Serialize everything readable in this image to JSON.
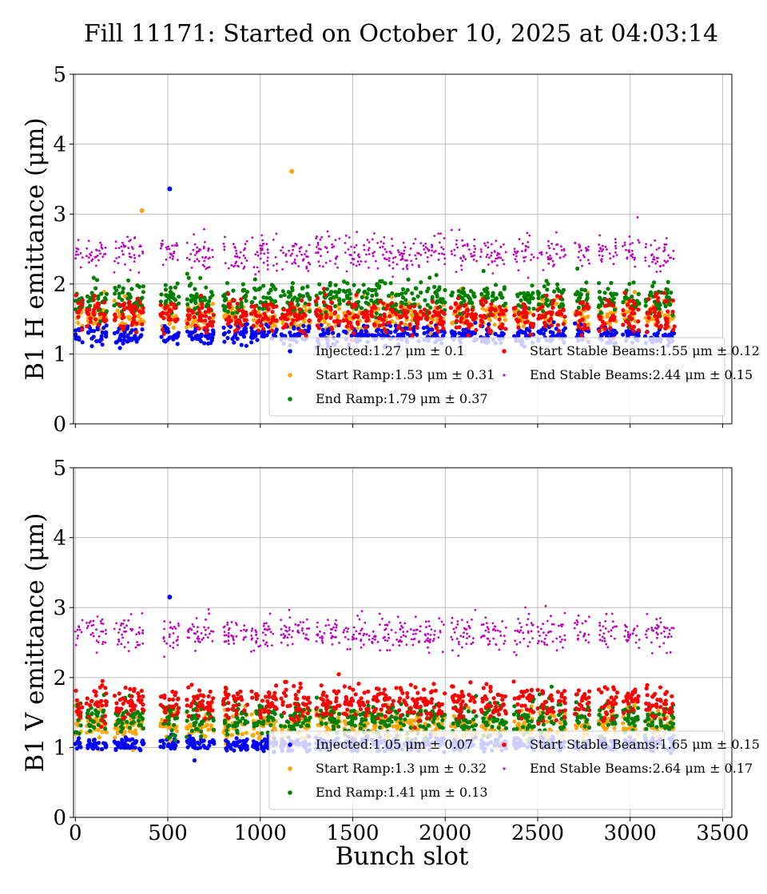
{
  "chart_data": {
    "type": "scatter",
    "title": "Fill 11171: Started on October 10, 2025 at 04:03:14",
    "xlabel": "Bunch slot",
    "xlim": [
      -10,
      3550
    ],
    "xticks": [
      0,
      500,
      1000,
      1500,
      2000,
      2500,
      3000,
      3500
    ],
    "xtick_labels": [
      "0",
      "500",
      "1000",
      "1500",
      "2000",
      "2500",
      "3000",
      "3500"
    ],
    "grid": true,
    "legend_placement": "lower-right",
    "panels": [
      {
        "name": "horizontal",
        "ylabel": "B1 H emittance (μm)",
        "ylim": [
          0,
          5
        ],
        "yticks": [
          0,
          1,
          2,
          3,
          4,
          5
        ],
        "ytick_labels": [
          "0",
          "1",
          "2",
          "3",
          "4",
          "5"
        ],
        "series": [
          {
            "name": "Injected",
            "label": "Injected:1.27 μm ± 0.1",
            "color": "#0000ff",
            "mean": 1.27,
            "std": 0.1
          },
          {
            "name": "Start Ramp",
            "label": "Start Ramp:1.53 μm ± 0.31",
            "color": "#ffa500",
            "mean": 1.53,
            "std": 0.31
          },
          {
            "name": "End Ramp",
            "label": "End Ramp:1.79 μm ± 0.37",
            "color": "#008000",
            "mean": 1.79,
            "std": 0.37
          },
          {
            "name": "Start Stable Beams",
            "label": "Start Stable Beams:1.55 μm ± 0.12",
            "color": "#ff0000",
            "mean": 1.55,
            "std": 0.12
          },
          {
            "name": "End Stable Beams",
            "label": "End Stable Beams:2.44 μm ± 0.15",
            "color": "#bf00bf",
            "mean": 2.44,
            "std": 0.15
          }
        ],
        "outliers": [
          {
            "series": "Injected",
            "x": 510,
            "y": 3.36
          },
          {
            "series": "Start Ramp",
            "x": 1170,
            "y": 3.61
          },
          {
            "series": "Start Ramp",
            "x": 360,
            "y": 3.05
          }
        ]
      },
      {
        "name": "vertical",
        "ylabel": "B1 V emittance (μm)",
        "ylim": [
          0,
          5
        ],
        "yticks": [
          0,
          1,
          2,
          3,
          4,
          5
        ],
        "ytick_labels": [
          "0",
          "1",
          "2",
          "3",
          "4",
          "5"
        ],
        "series": [
          {
            "name": "Injected",
            "label": "Injected:1.05 μm ± 0.07",
            "color": "#0000ff",
            "mean": 1.05,
            "std": 0.07
          },
          {
            "name": "Start Ramp",
            "label": "Start Ramp:1.3 μm ± 0.32",
            "color": "#ffa500",
            "mean": 1.3,
            "std": 0.32
          },
          {
            "name": "End Ramp",
            "label": "End Ramp:1.41 μm ± 0.13",
            "color": "#008000",
            "mean": 1.41,
            "std": 0.13
          },
          {
            "name": "Start Stable Beams",
            "label": "Start Stable Beams:1.65 μm ± 0.15",
            "color": "#ff0000",
            "mean": 1.65,
            "std": 0.15
          },
          {
            "name": "End Stable Beams",
            "label": "End Stable Beams:2.64 μm ± 0.17",
            "color": "#bf00bf",
            "mean": 2.64,
            "std": 0.17
          }
        ],
        "outliers": [
          {
            "series": "Injected",
            "x": 510,
            "y": 3.15
          }
        ]
      }
    ],
    "bunch_trains": [
      [
        0,
        40
      ],
      [
        60,
        170
      ],
      [
        210,
        370
      ],
      [
        460,
        560
      ],
      [
        600,
        750
      ],
      [
        800,
        930
      ],
      [
        950,
        1090
      ],
      [
        1110,
        1270
      ],
      [
        1300,
        1430
      ],
      [
        1450,
        1590
      ],
      [
        1600,
        1720
      ],
      [
        1730,
        1870
      ],
      [
        1880,
        2000
      ],
      [
        2030,
        2170
      ],
      [
        2190,
        2330
      ],
      [
        2370,
        2480
      ],
      [
        2500,
        2590
      ],
      [
        2600,
        2650
      ],
      [
        2700,
        2780
      ],
      [
        2830,
        2930
      ],
      [
        2960,
        3050
      ],
      [
        3080,
        3170
      ],
      [
        3180,
        3240
      ]
    ]
  }
}
